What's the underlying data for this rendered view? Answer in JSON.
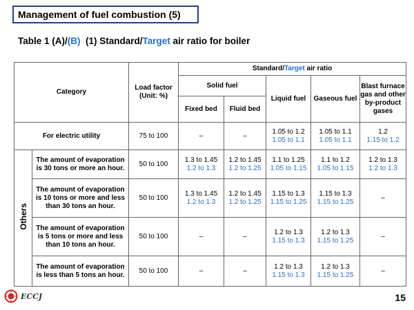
{
  "slide": {
    "title": "Management of fuel combustion (5)",
    "subtitle_prefix": "Table 1 (A)/",
    "subtitle_b": "(B)",
    "subtitle_mid": "  (1) Standard/",
    "subtitle_target": "Target",
    "subtitle_suffix": " air ratio for boiler",
    "page_number": "15",
    "logo_text": "ECCJ"
  },
  "table": {
    "headers": {
      "category": "Category",
      "load_factor": "Load factor (Unit: %)",
      "standard_prefix": "Standard/",
      "standard_target": "Target",
      "standard_suffix": " air ratio",
      "solid_fuel": "Solid fuel",
      "fixed_bed": "Fixed bed",
      "fluid_bed": "Fluid bed",
      "liquid_fuel": "Liquid fuel",
      "gaseous_fuel": "Gaseous fuel",
      "blast_furnace": "Blast furnace gas and other by-product gases"
    },
    "electric": {
      "label": "For electric utility",
      "load": "75 to 100",
      "fixed_bed": "–",
      "fluid_bed": "–",
      "liquid_std": "1.05 to 1.2",
      "liquid_tgt": "1.05 to 1.1",
      "gas_std": "1.05 to 1.1",
      "gas_tgt": "1.05 to 1.1",
      "blast_std": "1.2",
      "blast_tgt": "1.15 to 1.2"
    },
    "others_label": "Others",
    "others": [
      {
        "desc": "The amount of evaporation is 30 tons or more an hour.",
        "load": "50 to 100",
        "fixed_std": "1.3 to 1.45",
        "fixed_tgt": "1.2 to 1.3",
        "fluid_std": "1.2 to 1.45",
        "fluid_tgt": "1.2 to 1.25",
        "liquid_std": "1.1 to 1.25",
        "liquid_tgt": "1.05 to 1.15",
        "gas_std": "1.1 to 1.2",
        "gas_tgt": "1.05 to 1.15",
        "blast_std": "1.2 to 1.3",
        "blast_tgt": "1.2 to 1.3"
      },
      {
        "desc": "The amount of evaporation is 10 tons or more and less than 30 tons an hour.",
        "load": "50 to 100",
        "fixed_std": "1.3 to 1.45",
        "fixed_tgt": "1.2 to 1.3",
        "fluid_std": "1.2 to 1.45",
        "fluid_tgt": "1.2 to 1.25",
        "liquid_std": "1.15 to 1.3",
        "liquid_tgt": "1.15 to 1.25",
        "gas_std": "1.15 to 1.3",
        "gas_tgt": "1.15 to 1.25",
        "blast": "–"
      },
      {
        "desc": "The amount of evaporation is 5 tons or more and less than 10 tons an hour.",
        "load": "50 to 100",
        "fixed": "–",
        "fluid": "–",
        "liquid_std": "1.2 to 1.3",
        "liquid_tgt": "1.15 to 1.3",
        "gas_std": "1.2 to 1.3",
        "gas_tgt": "1.15 to 1.25",
        "blast": "–"
      },
      {
        "desc": "The amount of evaporation is less than 5 tons an hour.",
        "load": "50 to 100",
        "fixed": "–",
        "fluid": "–",
        "liquid_std": "1.2 to 1.3",
        "liquid_tgt": "1.15 to 1.3",
        "gas_std": "1.2 to 1.3",
        "gas_tgt": "1.15 to 1.25",
        "blast": "–"
      }
    ]
  }
}
